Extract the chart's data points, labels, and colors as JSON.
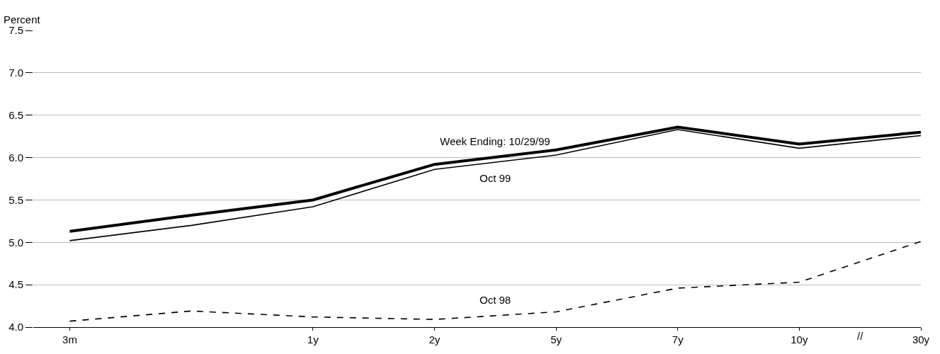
{
  "chart_data": {
    "type": "line",
    "ylabel": "Percent",
    "categories": [
      "3m",
      null,
      "1y",
      "2y",
      "5y",
      "7y",
      "10y",
      "30y"
    ],
    "series": [
      {
        "name": "Week Ending: 10/29/99",
        "color": "#000000",
        "values": [
          5.13,
          5.32,
          5.5,
          5.92,
          6.09,
          6.36,
          6.16,
          6.3
        ],
        "line_style": "solid"
      },
      {
        "name": "Oct 99",
        "color": "#000000",
        "values": [
          5.02,
          5.2,
          5.42,
          5.86,
          6.03,
          6.33,
          6.11,
          6.26
        ],
        "line_style": "solid"
      },
      {
        "name": "Oct 98",
        "color": "#000000",
        "values": [
          4.07,
          4.19,
          4.12,
          4.09,
          4.18,
          4.46,
          4.53,
          5.01
        ],
        "line_style": "dashed"
      }
    ],
    "ylim": [
      4,
      7.5
    ],
    "yticks": [
      {
        "value": 4,
        "label": "4.0"
      },
      {
        "value": 4.5,
        "label": "4.5"
      },
      {
        "value": 5,
        "label": "5.0"
      },
      {
        "value": 5.5,
        "label": "5.5"
      },
      {
        "value": 6,
        "label": "6.0"
      },
      {
        "value": 6.5,
        "label": "6.5"
      },
      {
        "value": 7,
        "label": "7.0"
      },
      {
        "value": 7.5,
        "label": "7.5"
      }
    ],
    "grid": "y",
    "legend": false,
    "marker": "none",
    "annotations": [
      "//"
    ]
  }
}
